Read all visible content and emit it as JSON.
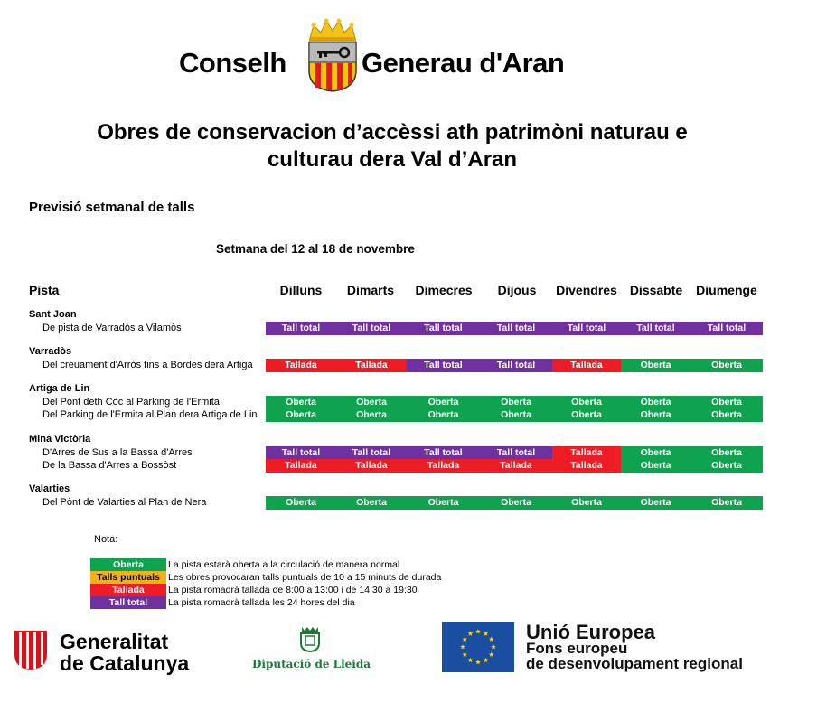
{
  "header": {
    "org_left": "Conselh",
    "org_right": "Generau d'Aran"
  },
  "title": {
    "line1": "Obres de conservacion d’accèssi ath patrimòni naturau e",
    "line2": "culturau dera Val d’Aran"
  },
  "subtitle": "Previsió setmanal de talls",
  "week": "Setmana del 12 al 18 de novembre",
  "table": {
    "col_pista": "Pista",
    "days": [
      "Dilluns",
      "Dimarts",
      "Dimecres",
      "Dijous",
      "Divendres",
      "Dissabte",
      "Diumenge"
    ],
    "groups": [
      {
        "name": "Sant Joan",
        "routes": [
          {
            "name": "De pista de Varradòs a Vilamòs",
            "cells": [
              "Tall total",
              "Tall total",
              "Tall total",
              "Tall total",
              "Tall total",
              "Tall total",
              "Tall total"
            ]
          }
        ]
      },
      {
        "name": "Varradòs",
        "routes": [
          {
            "name": "Del creuament d'Arròs fins a Bordes dera Artiga",
            "cells": [
              "Tallada",
              "Tallada",
              "Tall total",
              "Tall total",
              "Tallada",
              "Oberta",
              "Oberta"
            ]
          }
        ]
      },
      {
        "name": "Artiga de Lin",
        "routes": [
          {
            "name": "Del Pònt deth Còc al Parking de l'Ermita",
            "cells": [
              "Oberta",
              "Oberta",
              "Oberta",
              "Oberta",
              "Oberta",
              "Oberta",
              "Oberta"
            ]
          },
          {
            "name": "Del Parking de l'Ermita al Plan dera Artiga de Lin",
            "cells": [
              "Oberta",
              "Oberta",
              "Oberta",
              "Oberta",
              "Oberta",
              "Oberta",
              "Oberta"
            ]
          }
        ]
      },
      {
        "name": "Mina Victòria",
        "routes": [
          {
            "name": "D'Arres de Sus a la Bassa d'Arres",
            "cells": [
              "Tall total",
              "Tall total",
              "Tall total",
              "Tall total",
              "Tallada",
              "Oberta",
              "Oberta"
            ]
          },
          {
            "name": "De la Bassa d'Arres a Bossòst",
            "cells": [
              "Tallada",
              "Tallada",
              "Tallada",
              "Tallada",
              "Tallada",
              "Oberta",
              "Oberta"
            ]
          }
        ]
      },
      {
        "name": "Valarties",
        "routes": [
          {
            "name": "Del Pònt de Valarties al Plan de Nera",
            "cells": [
              "Oberta",
              "Oberta",
              "Oberta",
              "Oberta",
              "Oberta",
              "Oberta",
              "Oberta"
            ]
          }
        ]
      }
    ]
  },
  "status_colors": {
    "Oberta": "#10a34f",
    "Talls puntuals": "#f0b21a",
    "Tallada": "#ee1c25",
    "Tall total": "#7030a0"
  },
  "legend": {
    "label": "Nota:",
    "items": [
      {
        "key": "Oberta",
        "text": "La pista estarà oberta a la circulació de manera normal"
      },
      {
        "key": "Talls puntuals",
        "text": "Les obres provocaran talls puntuals de 10 a 15 minuts de durada"
      },
      {
        "key": "Tallada",
        "text": "La pista romadrà tallada de 8:00 a 13:00 i de 14:30 a 19:30"
      },
      {
        "key": "Tall total",
        "text": "La pista romadrà tallada les 24 hores del dia"
      }
    ]
  },
  "footer": {
    "gencat_line1": "Generalitat",
    "gencat_line2": "de Catalunya",
    "diputacio": "Diputació de Lleida",
    "eu_line1": "Unió Europea",
    "eu_line2": "Fons europeu",
    "eu_line3": "de desenvolupament regional"
  }
}
